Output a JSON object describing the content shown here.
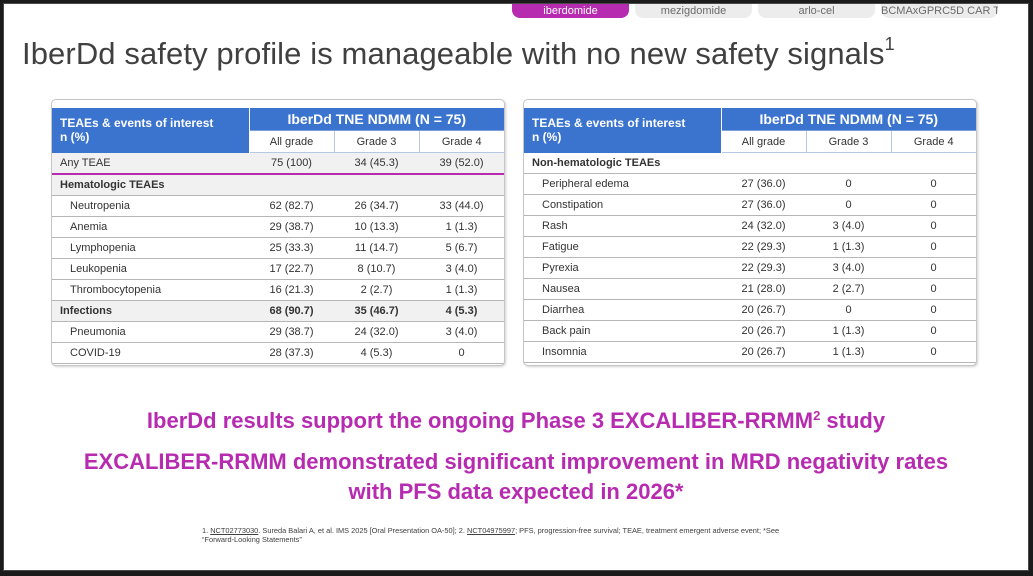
{
  "tabs": [
    {
      "label": "iberdomide",
      "active": true
    },
    {
      "label": "mezigdomide",
      "active": false
    },
    {
      "label": "arlo-cel",
      "active": false
    },
    {
      "label": "BCMAxGPRC5D CAR T",
      "active": false
    }
  ],
  "title": {
    "text": "IberDd safety profile is manageable with no new safety signals",
    "sup": "1"
  },
  "left_table": {
    "row_header_line1": "TEAEs & events of interest",
    "row_header_line2": "n (%)",
    "group_header": "IberDd TNE NDMM (N = 75)",
    "columns": [
      "All grade",
      "Grade 3",
      "Grade 4"
    ],
    "rows": [
      {
        "label": "Any TEAE",
        "type": "any",
        "values": [
          "75 (100)",
          "34 (45.3)",
          "39 (52.0)"
        ]
      },
      {
        "label": "Hematologic TEAEs",
        "type": "cat",
        "values": [
          "",
          "",
          ""
        ]
      },
      {
        "label": "Neutropenia",
        "type": "sub",
        "values": [
          "62 (82.7)",
          "26 (34.7)",
          "33 (44.0)"
        ]
      },
      {
        "label": "Anemia",
        "type": "sub",
        "values": [
          "29 (38.7)",
          "10 (13.3)",
          "1 (1.3)"
        ]
      },
      {
        "label": "Lymphopenia",
        "type": "sub",
        "values": [
          "25 (33.3)",
          "11 (14.7)",
          "5 (6.7)"
        ]
      },
      {
        "label": "Leukopenia",
        "type": "sub",
        "values": [
          "17 (22.7)",
          "8 (10.7)",
          "3 (4.0)"
        ]
      },
      {
        "label": "Thrombocytopenia",
        "type": "sub",
        "values": [
          "16 (21.3)",
          "2 (2.7)",
          "1 (1.3)"
        ]
      },
      {
        "label": "Infections",
        "type": "cat",
        "values": [
          "68 (90.7)",
          "35 (46.7)",
          "4 (5.3)"
        ]
      },
      {
        "label": "Pneumonia",
        "type": "sub",
        "values": [
          "29 (38.7)",
          "24 (32.0)",
          "3 (4.0)"
        ]
      },
      {
        "label": "COVID-19",
        "type": "sub",
        "values": [
          "28 (37.3)",
          "4 (5.3)",
          "0"
        ]
      }
    ]
  },
  "right_table": {
    "row_header_line1": "TEAEs & events of interest",
    "row_header_line2": "n (%)",
    "group_header": "IberDd TNE NDMM (N = 75)",
    "columns": [
      "All grade",
      "Grade 3",
      "Grade 4"
    ],
    "rows": [
      {
        "label": "Non-hematologic TEAEs",
        "type": "cat-plain",
        "values": [
          "",
          "",
          ""
        ]
      },
      {
        "label": "Peripheral edema",
        "type": "sub",
        "values": [
          "27 (36.0)",
          "0",
          "0"
        ]
      },
      {
        "label": "Constipation",
        "type": "sub",
        "values": [
          "27 (36.0)",
          "0",
          "0"
        ]
      },
      {
        "label": "Rash",
        "type": "sub",
        "values": [
          "24 (32.0)",
          "3 (4.0)",
          "0"
        ]
      },
      {
        "label": "Fatigue",
        "type": "sub",
        "values": [
          "22 (29.3)",
          "1 (1.3)",
          "0"
        ]
      },
      {
        "label": "Pyrexia",
        "type": "sub",
        "values": [
          "22 (29.3)",
          "3 (4.0)",
          "0"
        ]
      },
      {
        "label": "Nausea",
        "type": "sub",
        "values": [
          "21 (28.0)",
          "2 (2.7)",
          "0"
        ]
      },
      {
        "label": "Diarrhea",
        "type": "sub",
        "values": [
          "20 (26.7)",
          "0",
          "0"
        ]
      },
      {
        "label": "Back pain",
        "type": "sub",
        "values": [
          "20 (26.7)",
          "1 (1.3)",
          "0"
        ]
      },
      {
        "label": "Insomnia",
        "type": "sub",
        "values": [
          "20 (26.7)",
          "1 (1.3)",
          "0"
        ]
      }
    ]
  },
  "message1": {
    "before": "IberDd results support the ongoing Phase 3 EXCALIBER-RRMM",
    "sup": "2",
    "after": " study"
  },
  "message2": {
    "line1": "EXCALIBER-RRMM demonstrated significant improvement in MRD negativity rates",
    "line2": "with PFS data expected in 2026*"
  },
  "footnote": {
    "p1": "1. ",
    "link1": "NCT02773030",
    "p2": ". Sureda Balari A, et al. IMS 2025 [Oral Presentation OA-50]; 2. ",
    "link2": "NCT04975997",
    "p3": "; PFS, progression-free survival; TEAE, treatment emergent adverse event; *See",
    "line2": "“Forward-Looking Statements”"
  },
  "colors": {
    "accent": "#b62bb0",
    "header_blue": "#3b74cf",
    "title_gray": "#404040"
  }
}
